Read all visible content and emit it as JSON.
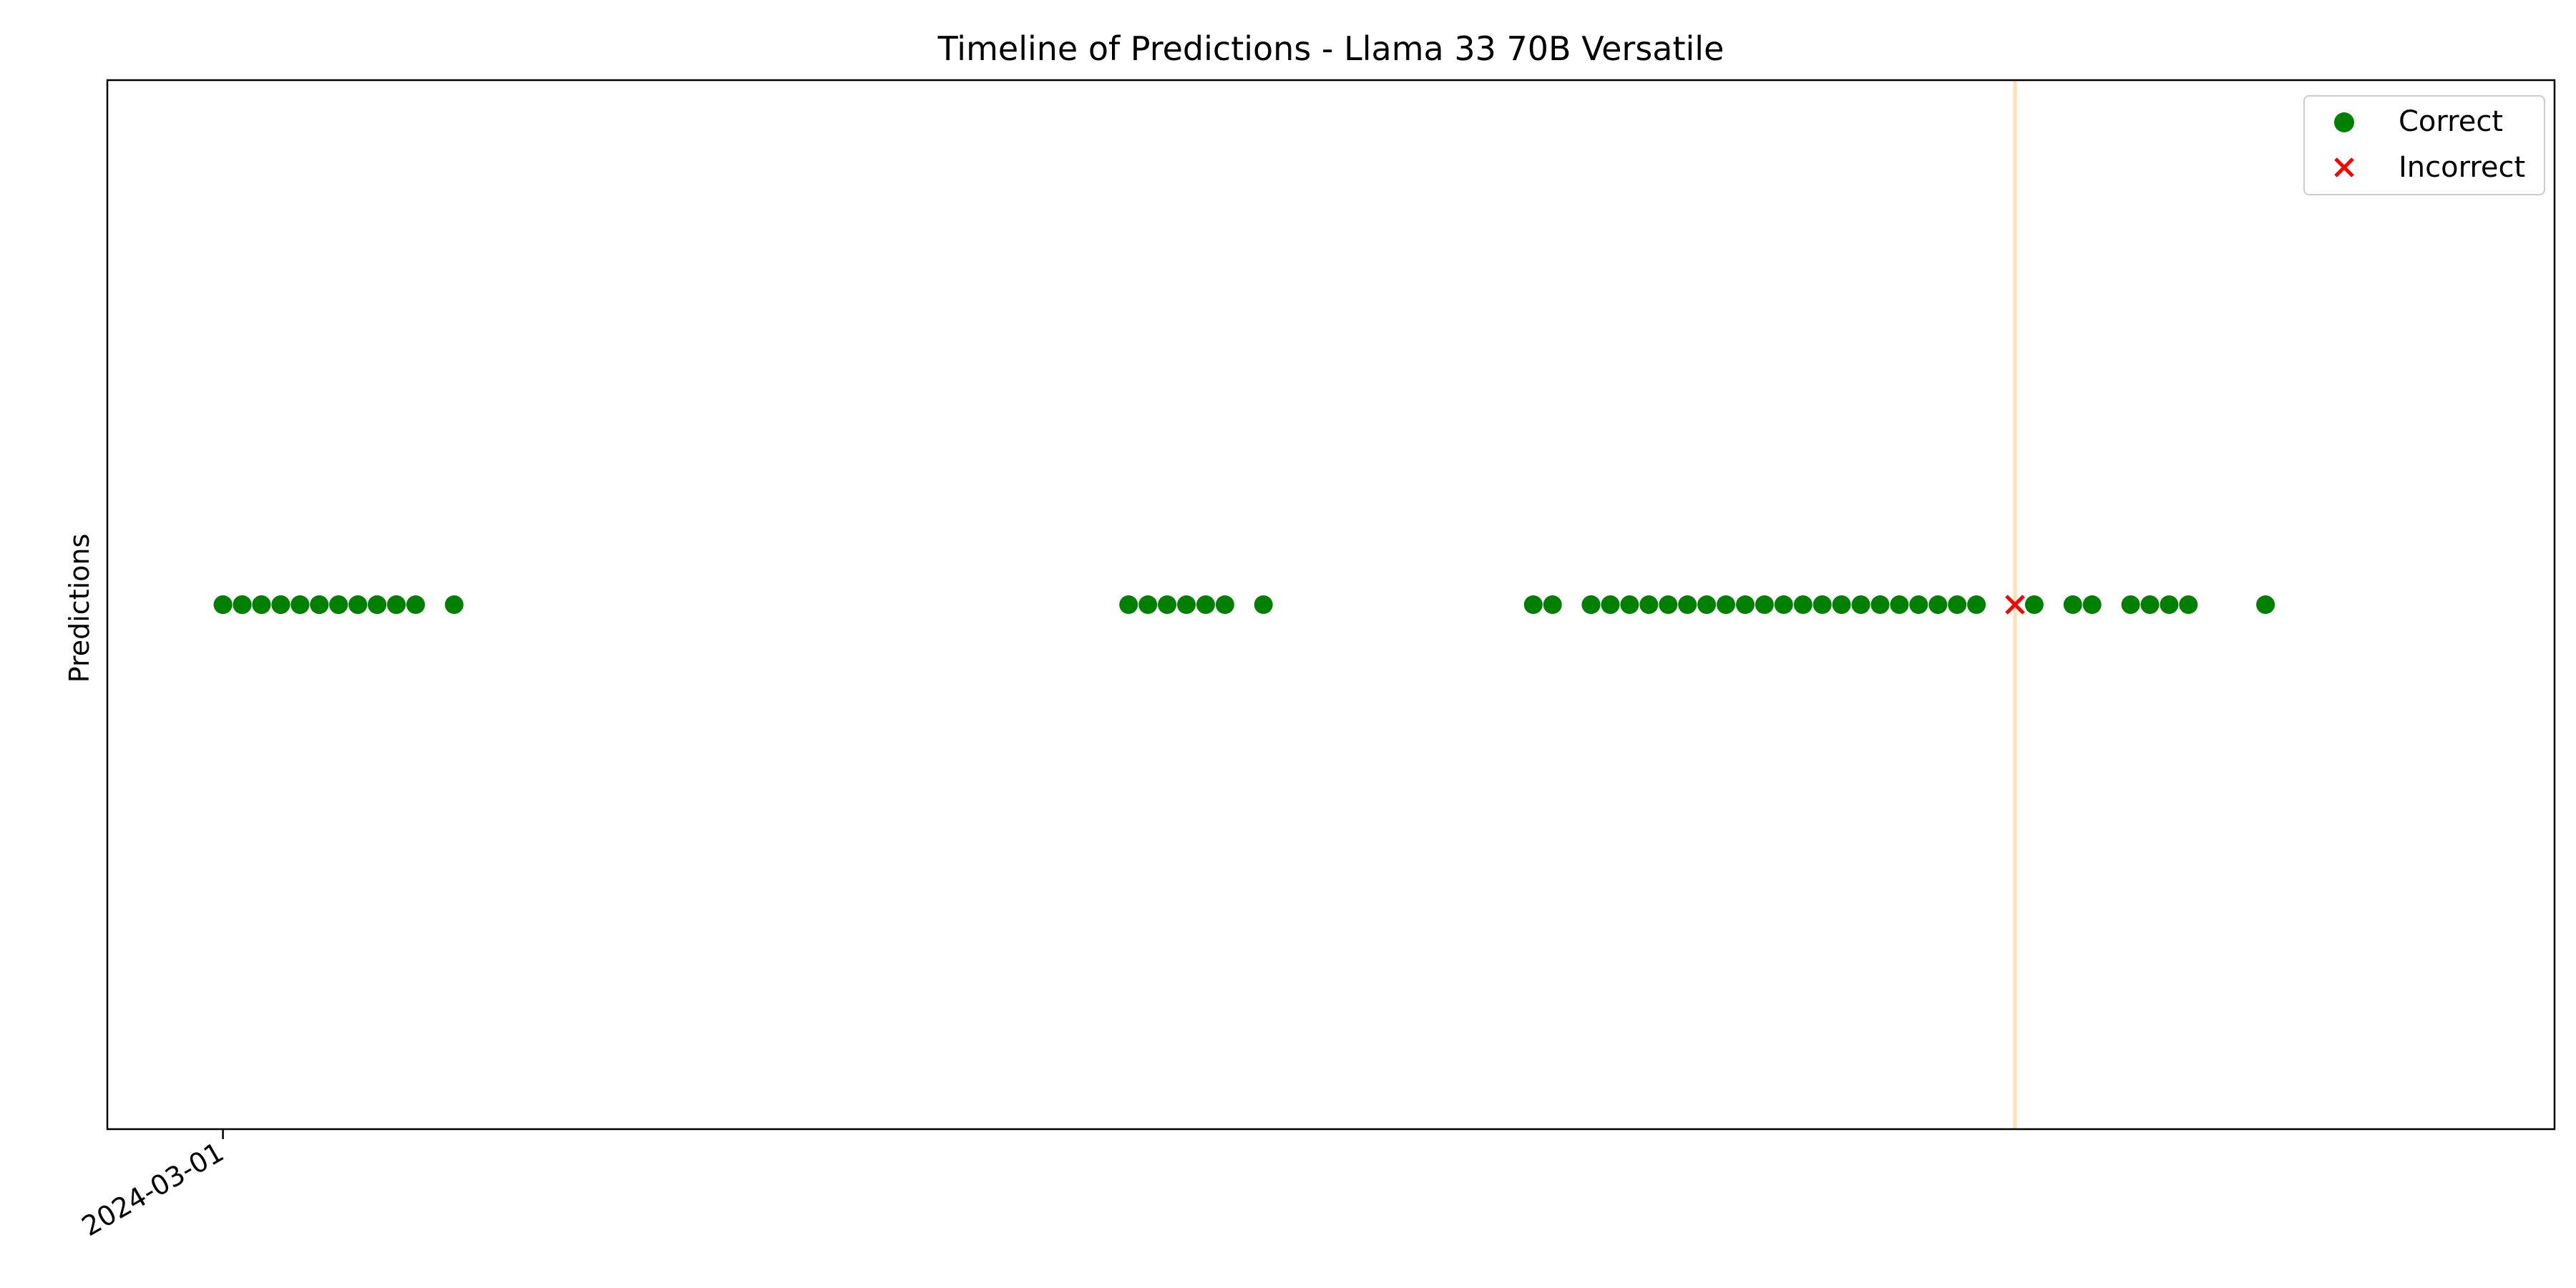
{
  "chart_data": {
    "type": "scatter",
    "title": "Timeline of Predictions - Llama 33 70B Versatile",
    "xlabel": "",
    "ylabel": "Predictions",
    "x_axis_type": "date",
    "xlim": [
      "2024-02-24",
      "2024-06-30"
    ],
    "x_ticks": [
      "2024-03-01"
    ],
    "x_tick_rotation": -30,
    "grid": false,
    "legend_position": "top-right",
    "reference_line": {
      "x": "2024-06-02",
      "color": "#ffe0b3"
    },
    "series": [
      {
        "name": "Correct",
        "marker": "circle",
        "color": "#008000",
        "x": [
          "2024-03-01",
          "2024-03-01",
          "2024-03-02",
          "2024-03-02",
          "2024-03-02",
          "2024-03-03",
          "2024-03-03",
          "2024-03-04",
          "2024-03-04",
          "2024-03-05",
          "2024-03-05",
          "2024-03-06",
          "2024-03-06",
          "2024-03-07",
          "2024-03-07",
          "2024-03-08",
          "2024-03-08",
          "2024-03-09",
          "2024-03-09",
          "2024-03-10",
          "2024-03-10",
          "2024-03-11",
          "2024-03-13",
          "2024-04-17",
          "2024-04-18",
          "2024-04-19",
          "2024-04-20",
          "2024-04-21",
          "2024-04-22",
          "2024-04-24",
          "2024-05-08",
          "2024-05-09",
          "2024-05-11",
          "2024-05-11",
          "2024-05-12",
          "2024-05-13",
          "2024-05-14",
          "2024-05-15",
          "2024-05-16",
          "2024-05-17",
          "2024-05-18",
          "2024-05-19",
          "2024-05-20",
          "2024-05-21",
          "2024-05-22",
          "2024-05-23",
          "2024-05-24",
          "2024-05-25",
          "2024-05-26",
          "2024-05-27",
          "2024-05-28",
          "2024-05-29",
          "2024-05-30",
          "2024-05-31",
          "2024-06-03",
          "2024-06-05",
          "2024-06-06",
          "2024-06-08",
          "2024-06-09",
          "2024-06-10",
          "2024-06-11",
          "2024-06-15"
        ]
      },
      {
        "name": "Incorrect",
        "marker": "x",
        "color": "#ff0000",
        "x": [
          "2024-06-02"
        ]
      }
    ]
  }
}
